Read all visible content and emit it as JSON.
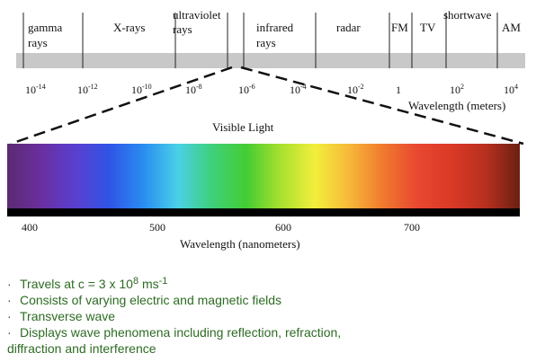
{
  "spectrum_bar": {
    "region_labels": [
      {
        "lines": [
          "gamma",
          "rays"
        ]
      },
      {
        "lines": [
          "X-rays"
        ]
      },
      {
        "lines": [
          "ultraviolet",
          "rays"
        ]
      },
      {
        "lines": [
          "infrared",
          "rays"
        ]
      },
      {
        "lines": [
          "radar"
        ]
      },
      {
        "lines": [
          "FM"
        ]
      },
      {
        "lines": [
          "TV"
        ]
      },
      {
        "lines": [
          "shortwave"
        ]
      },
      {
        "lines": [
          "AM"
        ]
      }
    ],
    "wavelength_ticks": [
      {
        "base": "10",
        "exp": "-14"
      },
      {
        "base": "10",
        "exp": "-12"
      },
      {
        "base": "10",
        "exp": "-10"
      },
      {
        "base": "10",
        "exp": "-8"
      },
      {
        "base": "10",
        "exp": "-6"
      },
      {
        "base": "10",
        "exp": "-4"
      },
      {
        "base": "10",
        "exp": "-2"
      },
      {
        "base": "1",
        "exp": ""
      },
      {
        "base": "10",
        "exp": "2"
      },
      {
        "base": "10",
        "exp": "4"
      }
    ],
    "axis_label": "Wavelength (meters)",
    "bar_color": "#c8c8c8"
  },
  "visible": {
    "title": "Visible Light",
    "tick_labels": [
      "400",
      "500",
      "600",
      "700"
    ],
    "axis_label": "Wavelength (nanometers)",
    "gradient_colors": [
      "#5b2a72",
      "#6a2fa0",
      "#5a3fd0",
      "#2f55e6",
      "#2a8ef0",
      "#4ad0e8",
      "#3ed07a",
      "#44cc33",
      "#a8e02e",
      "#f2ef3c",
      "#f7b83a",
      "#f07a2e",
      "#e84830",
      "#da3a26",
      "#b8301f",
      "#6a2012"
    ]
  },
  "bullets": {
    "items": [
      {
        "text": "Travels at c = 3 x 10",
        "sup1": "8",
        "mid": " ms",
        "sup2": "-1"
      },
      {
        "text": "Consists of varying electric and magnetic fields"
      },
      {
        "text": "Transverse wave"
      },
      {
        "text": "Displays wave phenomena including reflection, refraction,"
      },
      {
        "text": "diffraction and interference"
      }
    ],
    "bullet_char": "·",
    "text_color": "#2d6b23"
  }
}
